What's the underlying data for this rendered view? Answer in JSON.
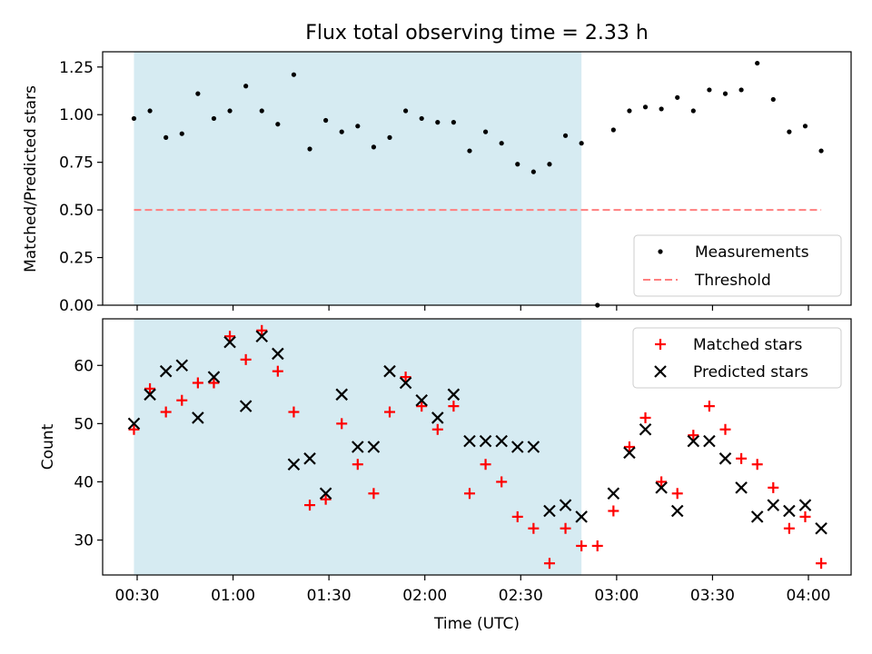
{
  "chart_data": [
    {
      "type": "scatter",
      "title": "Flux total observing time = 2.33 h",
      "xlabel": "",
      "ylabel": "Matched/Predicted stars",
      "ylim": [
        0.0,
        1.33
      ],
      "yticks": [
        "0.00",
        "0.25",
        "0.50",
        "0.75",
        "1.00",
        "1.25"
      ],
      "x_axis": "shared time axis, tick labels shown on lower panel only",
      "shaded_region": {
        "start": "00:29",
        "end": "02:49",
        "color": "#add8e6"
      },
      "legend_location": "lower right",
      "series": [
        {
          "name": "Measurements",
          "marker": "dot",
          "color": "#000000",
          "x": [
            "00:29",
            "00:34",
            "00:39",
            "00:44",
            "00:49",
            "00:54",
            "00:59",
            "01:04",
            "01:09",
            "01:14",
            "01:19",
            "01:24",
            "01:29",
            "01:34",
            "01:39",
            "01:44",
            "01:49",
            "01:54",
            "01:59",
            "02:04",
            "02:09",
            "02:14",
            "02:19",
            "02:24",
            "02:29",
            "02:34",
            "02:39",
            "02:44",
            "02:49",
            "02:54",
            "02:59",
            "03:04",
            "03:09",
            "03:14",
            "03:19",
            "03:24",
            "03:29",
            "03:34",
            "03:39",
            "03:44",
            "03:49",
            "03:54",
            "03:59",
            "04:04"
          ],
          "y": [
            0.98,
            1.02,
            0.88,
            0.9,
            1.11,
            0.98,
            1.02,
            1.15,
            1.02,
            0.95,
            1.21,
            0.82,
            0.97,
            0.91,
            0.94,
            0.83,
            0.88,
            1.02,
            0.98,
            0.96,
            0.96,
            0.81,
            0.91,
            0.85,
            0.74,
            0.7,
            0.74,
            0.89,
            0.85,
            0.0,
            0.92,
            1.02,
            1.04,
            1.03,
            1.09,
            1.02,
            1.13,
            1.11,
            1.13,
            1.27,
            1.08,
            0.91,
            0.94,
            0.81
          ]
        },
        {
          "name": "Threshold",
          "line_style": "dashed",
          "color": "#ff7f7f",
          "x": [
            "00:29",
            "04:04"
          ],
          "y": [
            0.5,
            0.5
          ]
        }
      ]
    },
    {
      "type": "scatter",
      "title": "",
      "xlabel": "Time (UTC)",
      "ylabel": "Count",
      "ylim": [
        24,
        68
      ],
      "yticks": [
        "30",
        "40",
        "50",
        "60"
      ],
      "xticks": [
        "00:30",
        "01:00",
        "01:30",
        "02:00",
        "02:30",
        "03:00",
        "03:30",
        "04:00"
      ],
      "shaded_region": {
        "start": "00:29",
        "end": "02:49",
        "color": "#add8e6"
      },
      "legend_location": "upper right",
      "series": [
        {
          "name": "Matched stars",
          "marker": "plus",
          "color": "#ff0000",
          "x": [
            "00:29",
            "00:34",
            "00:39",
            "00:44",
            "00:49",
            "00:54",
            "00:59",
            "01:04",
            "01:09",
            "01:14",
            "01:19",
            "01:24",
            "01:29",
            "01:34",
            "01:39",
            "01:44",
            "01:49",
            "01:54",
            "01:59",
            "02:04",
            "02:09",
            "02:14",
            "02:19",
            "02:24",
            "02:29",
            "02:34",
            "02:39",
            "02:44",
            "02:49",
            "02:54",
            "02:59",
            "03:04",
            "03:09",
            "03:14",
            "03:19",
            "03:24",
            "03:29",
            "03:34",
            "03:39",
            "03:44",
            "03:49",
            "03:54",
            "03:59",
            "04:04"
          ],
          "y": [
            49,
            56,
            52,
            54,
            57,
            57,
            65,
            61,
            66,
            59,
            52,
            36,
            37,
            50,
            43,
            38,
            52,
            58,
            53,
            49,
            53,
            38,
            43,
            40,
            34,
            32,
            26,
            32,
            29,
            29,
            35,
            46,
            51,
            40,
            38,
            48,
            53,
            49,
            44,
            43,
            39,
            32,
            34,
            26
          ]
        },
        {
          "name": "Predicted stars",
          "marker": "x",
          "color": "#000000",
          "x": [
            "00:29",
            "00:34",
            "00:39",
            "00:44",
            "00:49",
            "00:54",
            "00:59",
            "01:04",
            "01:09",
            "01:14",
            "01:19",
            "01:24",
            "01:29",
            "01:34",
            "01:39",
            "01:44",
            "01:49",
            "01:54",
            "01:59",
            "02:04",
            "02:09",
            "02:14",
            "02:19",
            "02:24",
            "02:29",
            "02:34",
            "02:39",
            "02:44",
            "02:49",
            "02:59",
            "03:04",
            "03:09",
            "03:14",
            "03:19",
            "03:24",
            "03:29",
            "03:34",
            "03:39",
            "03:44",
            "03:49",
            "03:54",
            "03:59",
            "04:04"
          ],
          "y": [
            50,
            55,
            59,
            60,
            51,
            58,
            64,
            53,
            65,
            62,
            43,
            44,
            38,
            55,
            46,
            46,
            59,
            57,
            54,
            51,
            55,
            47,
            47,
            47,
            46,
            46,
            35,
            36,
            34,
            38,
            45,
            49,
            39,
            35,
            47,
            47,
            44,
            39,
            34,
            36,
            35,
            36,
            32
          ]
        }
      ]
    }
  ]
}
